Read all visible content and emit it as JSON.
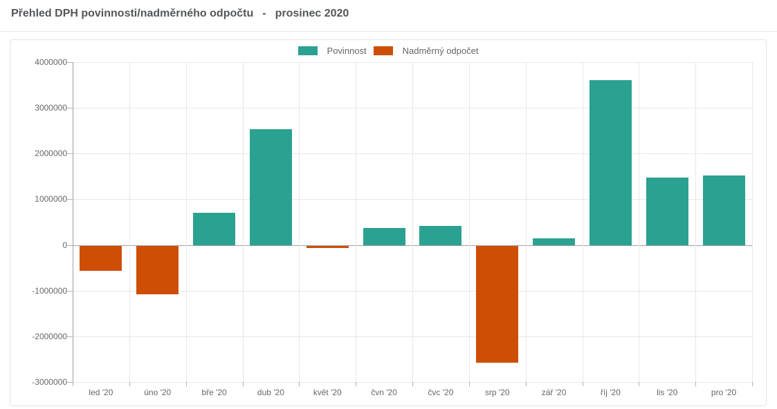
{
  "header": {
    "title": "Přehled DPH povinnosti/nadměrného odpočtu",
    "separator": "-",
    "period": "prosinec 2020"
  },
  "colors": {
    "title_text": "#54575a",
    "axis_line": "#9f9f9f",
    "grid_line": "#e7e7e7",
    "tick_mark": "#b0b0b0",
    "axis_label_text": "#666666",
    "legend_text": "#666666",
    "card_border": "#e3e3e3",
    "series_povinnost": "#2BA191",
    "series_nadmerny_odpocet": "#CE4E06"
  },
  "chart_data": {
    "type": "bar",
    "title": "Přehled DPH povinnosti/nadměrného odpočtu - prosinec 2020",
    "xlabel": "",
    "ylabel": "",
    "ylim": [
      -3000000,
      4000000
    ],
    "ytick_step": 1000000,
    "grid": true,
    "legend_position": "top-center",
    "categories": [
      "led '20",
      "úno '20",
      "bře '20",
      "dub '20",
      "květ '20",
      "čvn '20",
      "čvc '20",
      "srp '20",
      "zář '20",
      "říj '20",
      "lis '20",
      "pro '20"
    ],
    "series": [
      {
        "name": "Povinnost",
        "color": "#2BA191",
        "values": [
          null,
          null,
          700000,
          2530000,
          null,
          370000,
          420000,
          null,
          150000,
          3600000,
          1480000,
          1520000
        ]
      },
      {
        "name": "Nadměrný odpočet",
        "color": "#CE4E06",
        "values": [
          -550000,
          -1060000,
          null,
          null,
          -50000,
          null,
          null,
          -2560000,
          null,
          null,
          null,
          null
        ]
      }
    ]
  }
}
